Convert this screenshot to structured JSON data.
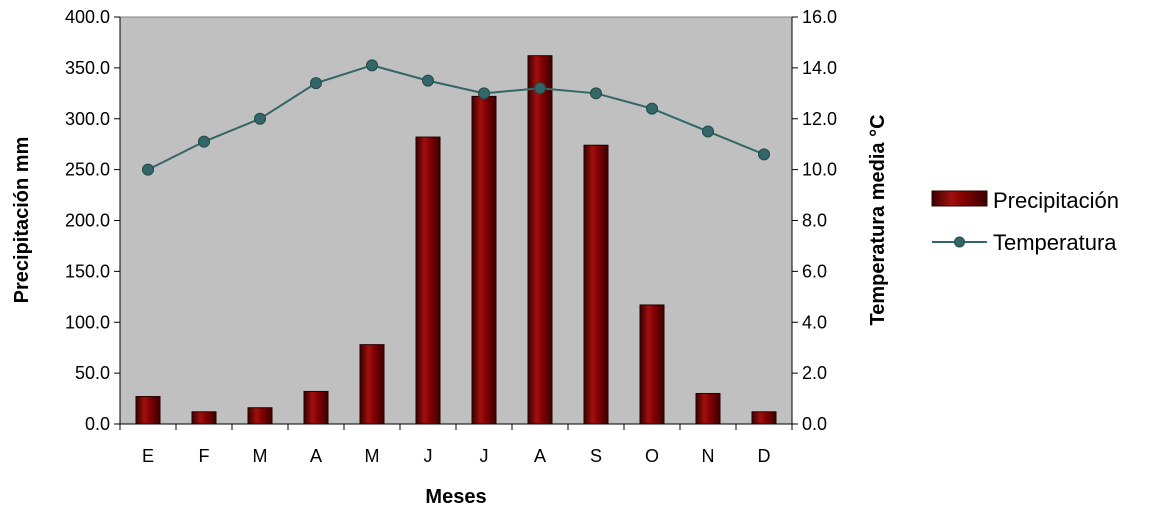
{
  "chart_data": {
    "type": "bar",
    "categories": [
      "E",
      "F",
      "M",
      "A",
      "M",
      "J",
      "J",
      "A",
      "S",
      "O",
      "N",
      "D"
    ],
    "series": [
      {
        "name": "Precipitación",
        "type": "bar",
        "axis": "left",
        "values": [
          27,
          12,
          16,
          32,
          78,
          282,
          322,
          362,
          274,
          117,
          30,
          12
        ]
      },
      {
        "name": "Temperatura",
        "type": "line",
        "axis": "right",
        "values": [
          10.0,
          11.1,
          12.0,
          13.4,
          14.1,
          13.5,
          13.0,
          13.2,
          13.0,
          12.4,
          11.5,
          10.6
        ]
      }
    ],
    "xlabel": "Meses",
    "ylabel": "Precipitación mm",
    "y2label": "Temperatura media °C",
    "ylim": [
      0,
      400
    ],
    "y2lim": [
      0,
      16
    ],
    "yticks": [
      "0.0",
      "50.0",
      "100.0",
      "150.0",
      "200.0",
      "250.0",
      "300.0",
      "350.0",
      "400.0"
    ],
    "y2ticks": [
      "0.0",
      "2.0",
      "4.0",
      "6.0",
      "8.0",
      "10.0",
      "12.0",
      "14.0",
      "16.0"
    ],
    "legend_position": "right",
    "grid": false,
    "colors": {
      "plot_background": "#c0c0c0",
      "bar": "#800000",
      "line": "#336666",
      "marker": "#336666"
    }
  }
}
